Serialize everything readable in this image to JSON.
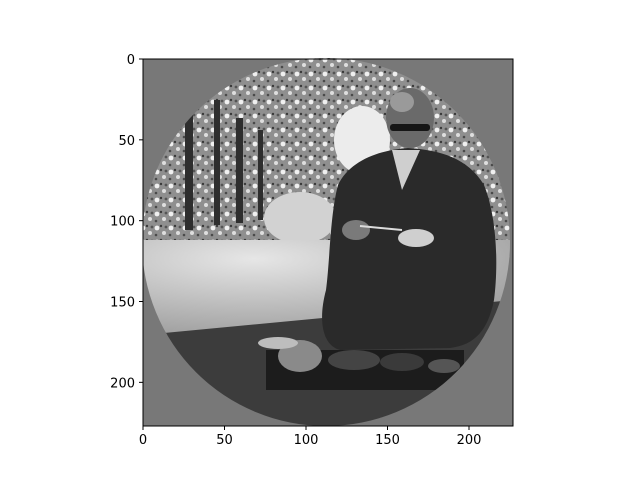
{
  "chart_data": {
    "type": "image",
    "title": "",
    "xlabel": "",
    "ylabel": "",
    "xlim": [
      0,
      227
    ],
    "ylim": [
      227,
      0
    ],
    "x_ticks": [
      0,
      50,
      100,
      150,
      200
    ],
    "y_ticks": [
      0,
      50,
      100,
      150,
      200
    ],
    "image_size": [
      227,
      227
    ],
    "image_content": "grayscale photograph of a seated monk with a meal tray, masked to a circle on a gray background",
    "mask_shape": "circle",
    "colors": {
      "mask_background": "#787878",
      "axis_spine": "#000000"
    }
  }
}
